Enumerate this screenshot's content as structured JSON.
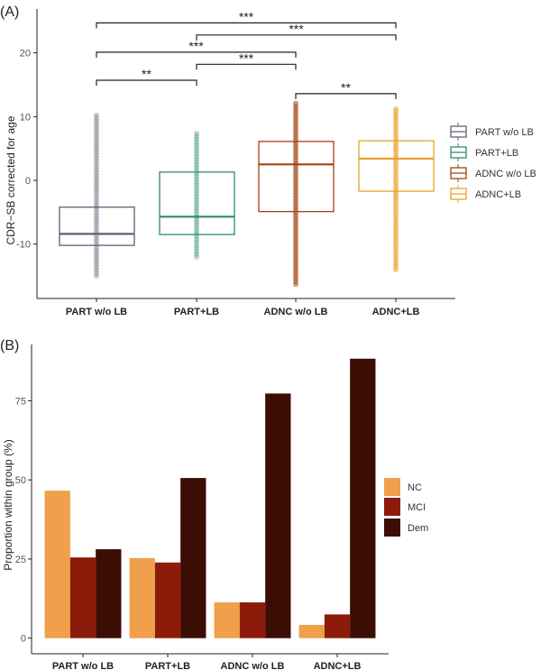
{
  "chart_data": [
    {
      "type": "box",
      "panel_label": "(A)",
      "title": "",
      "xlabel": "",
      "ylabel": "CDR−SB corrected for age",
      "ylim": [
        -18,
        27
      ],
      "yticks": [
        -10,
        0,
        10,
        20
      ],
      "grid": false,
      "legend_position": "right",
      "categories": [
        "PART w/o LB",
        "PART+LB",
        "ADNC w/o LB",
        "ADNC+LB"
      ],
      "series": [
        {
          "name": "PART w/o LB",
          "color": "#5e6079",
          "q1": -10.2,
          "median": -8.4,
          "q3": -4.2,
          "min": -15.0,
          "max": 10.2
        },
        {
          "name": "PART+LB",
          "color": "#2f8a6c",
          "q1": -8.5,
          "median": -5.7,
          "q3": 1.3,
          "min": -12.0,
          "max": 7.6
        },
        {
          "name": "ADNC w/o LB",
          "color": "#a4420f",
          "q1": -4.9,
          "median": 2.5,
          "q3": 6.1,
          "min": -16.3,
          "max": 12.1
        },
        {
          "name": "ADNC+LB",
          "color": "#e9a128",
          "q1": -1.7,
          "median": 3.4,
          "q3": 6.2,
          "min": -14.0,
          "max": 11.3
        }
      ],
      "significance": [
        {
          "from": 0,
          "to": 1,
          "y": 15.7,
          "label": "**"
        },
        {
          "from": 1,
          "to": 2,
          "y": 18.2,
          "label": "***"
        },
        {
          "from": 0,
          "to": 2,
          "y": 20.1,
          "label": "***"
        },
        {
          "from": 1,
          "to": 3,
          "y": 22.8,
          "label": "***"
        },
        {
          "from": 0,
          "to": 3,
          "y": 24.7,
          "label": "***"
        },
        {
          "from": 2,
          "to": 3,
          "y": 13.6,
          "label": "**"
        }
      ]
    },
    {
      "type": "bar",
      "panel_label": "(B)",
      "title": "",
      "xlabel": "",
      "ylabel": "Proportion within group (%)",
      "ylim": [
        -5,
        93
      ],
      "yticks": [
        0,
        25,
        50,
        75
      ],
      "grid": false,
      "legend_position": "right",
      "categories": [
        "PART w/o LB",
        "PART+LB",
        "ADNC w/o LB",
        "ADNC+LB"
      ],
      "series": [
        {
          "name": "NC",
          "color": "#f0a04b",
          "values": [
            46.6,
            25.3,
            11.3,
            4.2
          ]
        },
        {
          "name": "MCI",
          "color": "#8c1c09",
          "values": [
            25.5,
            23.9,
            11.3,
            7.5
          ]
        },
        {
          "name": "Dem",
          "color": "#3c0d04",
          "values": [
            28.1,
            50.6,
            77.3,
            88.3
          ]
        }
      ]
    }
  ]
}
